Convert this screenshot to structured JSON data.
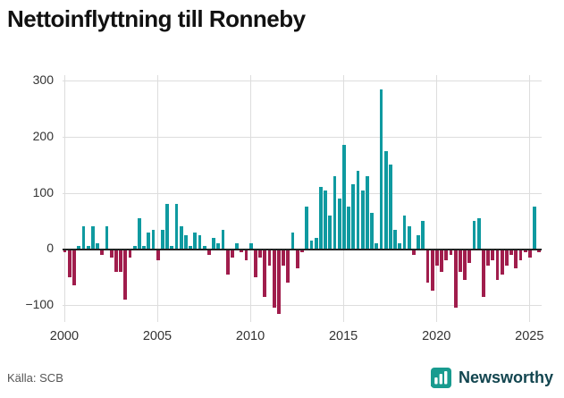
{
  "title": "Nettoinflyttning till Ronneby",
  "source": "Källa: SCB",
  "brand": {
    "name": "Newsworthy",
    "logo_color": "#189b8f",
    "text_color": "#12454f"
  },
  "chart_data": {
    "type": "bar",
    "title": "Nettoinflyttning till Ronneby",
    "xlabel": "",
    "ylabel": "",
    "x_ticks": [
      2000,
      2005,
      2010,
      2015,
      2020,
      2025
    ],
    "y_ticks": [
      -100,
      0,
      100,
      200,
      300
    ],
    "ylim": [
      -130,
      310
    ],
    "grid": true,
    "colors": {
      "positive": "#0f9aa0",
      "negative": "#a01d4c"
    },
    "frequency": "quarterly",
    "years": [
      {
        "year": 2000,
        "quarters": [
          -5,
          -50,
          -65,
          5
        ]
      },
      {
        "year": 2001,
        "quarters": [
          40,
          5,
          40,
          10
        ]
      },
      {
        "year": 2002,
        "quarters": [
          -10,
          40,
          -15,
          -40
        ]
      },
      {
        "year": 2003,
        "quarters": [
          -40,
          -90,
          -15,
          5
        ]
      },
      {
        "year": 2004,
        "quarters": [
          55,
          5,
          30,
          35
        ]
      },
      {
        "year": 2005,
        "quarters": [
          -20,
          35,
          80,
          5
        ]
      },
      {
        "year": 2006,
        "quarters": [
          80,
          40,
          25,
          5
        ]
      },
      {
        "year": 2007,
        "quarters": [
          30,
          25,
          5,
          -10
        ]
      },
      {
        "year": 2008,
        "quarters": [
          20,
          10,
          35,
          -45
        ]
      },
      {
        "year": 2009,
        "quarters": [
          -15,
          10,
          -5,
          -20
        ]
      },
      {
        "year": 2010,
        "quarters": [
          10,
          -50,
          -15,
          -85
        ]
      },
      {
        "year": 2011,
        "quarters": [
          -30,
          -105,
          -115,
          -30
        ]
      },
      {
        "year": 2012,
        "quarters": [
          -60,
          30,
          -35,
          -5
        ]
      },
      {
        "year": 2013,
        "quarters": [
          75,
          15,
          20,
          110
        ]
      },
      {
        "year": 2014,
        "quarters": [
          105,
          60,
          130,
          90
        ]
      },
      {
        "year": 2015,
        "quarters": [
          185,
          75,
          115,
          140
        ]
      },
      {
        "year": 2016,
        "quarters": [
          105,
          130,
          65,
          10
        ]
      },
      {
        "year": 2017,
        "quarters": [
          285,
          175,
          150,
          35
        ]
      },
      {
        "year": 2018,
        "quarters": [
          10,
          60,
          40,
          -10
        ]
      },
      {
        "year": 2019,
        "quarters": [
          25,
          50,
          -60,
          -75
        ]
      },
      {
        "year": 2020,
        "quarters": [
          -30,
          -40,
          -20,
          -10
        ]
      },
      {
        "year": 2021,
        "quarters": [
          -105,
          -40,
          -55,
          -25
        ]
      },
      {
        "year": 2022,
        "quarters": [
          50,
          55,
          -85,
          -30
        ]
      },
      {
        "year": 2023,
        "quarters": [
          -20,
          -55,
          -45,
          -30
        ]
      },
      {
        "year": 2024,
        "quarters": [
          -10,
          -35,
          -20,
          -5
        ]
      },
      {
        "year": 2025,
        "quarters": [
          -15,
          75,
          -5
        ]
      }
    ]
  }
}
